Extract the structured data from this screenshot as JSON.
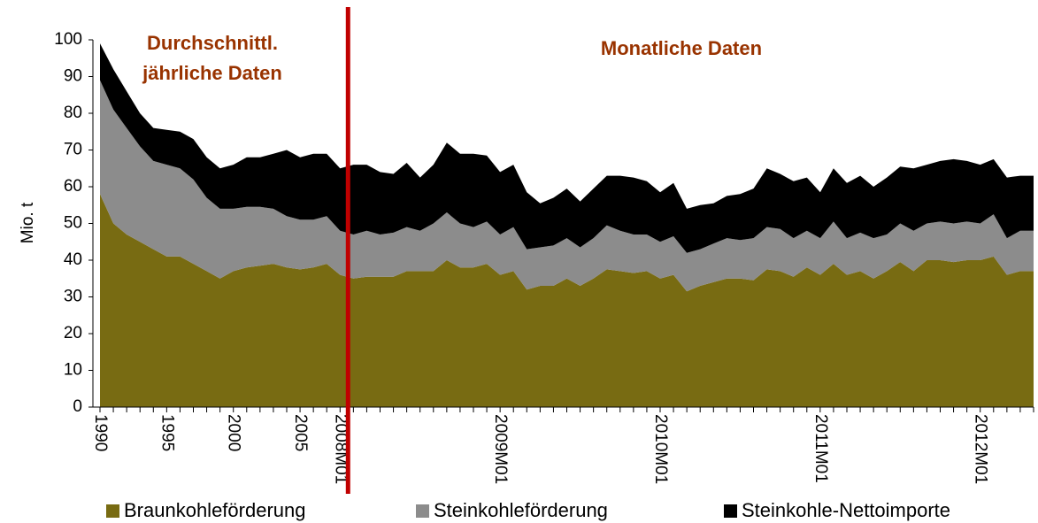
{
  "chart_data": {
    "type": "stacked_area",
    "y_label": "Mio. t",
    "annotations": [
      [
        "Durchschnittl.",
        "jährliche Daten"
      ],
      [
        "Monatliche Daten"
      ]
    ],
    "categories": [
      "1990",
      null,
      null,
      null,
      null,
      "1995",
      null,
      null,
      null,
      null,
      "2000",
      null,
      null,
      null,
      null,
      "2005",
      null,
      null,
      "2008M01",
      null,
      null,
      null,
      null,
      null,
      null,
      null,
      null,
      null,
      null,
      null,
      "2009M01",
      null,
      null,
      null,
      null,
      null,
      null,
      null,
      null,
      null,
      null,
      null,
      "2010M01",
      null,
      null,
      null,
      null,
      null,
      null,
      null,
      null,
      null,
      null,
      null,
      "2011M01",
      null,
      null,
      null,
      null,
      null,
      null,
      null,
      null,
      null,
      null,
      null,
      "2012M01",
      null,
      null,
      null,
      null
    ],
    "series": [
      {
        "name": "Braunkohleförderung",
        "color": "#786b12",
        "values": [
          58,
          50,
          47,
          45,
          43,
          41,
          41,
          39,
          37,
          35,
          37,
          38,
          38.5,
          39,
          38,
          37.5,
          38,
          39,
          36,
          35,
          35.5,
          35.5,
          35.5,
          37,
          37,
          37,
          40,
          38,
          38,
          39,
          36,
          37,
          32,
          33,
          33,
          35,
          33,
          35,
          37.5,
          37,
          36.5,
          37,
          35,
          36,
          31.5,
          33,
          34,
          35,
          35,
          34.5,
          37.5,
          37,
          35.5,
          38,
          36,
          39,
          36,
          37,
          35,
          37,
          39.5,
          37,
          40,
          40,
          39.5,
          40,
          40,
          41,
          36,
          37,
          37
        ]
      },
      {
        "name": "Steinkohleförderung",
        "color": "#8c8c8c",
        "values": [
          31,
          31,
          29,
          26,
          24,
          25,
          24,
          23,
          20,
          19,
          17,
          16.5,
          16,
          15,
          14,
          13.5,
          13,
          13,
          12,
          12,
          12.5,
          11.5,
          12,
          12,
          11,
          13,
          13,
          12,
          11,
          11.5,
          11,
          12,
          11,
          10.5,
          11,
          11,
          10.5,
          11,
          12,
          11,
          10.5,
          10,
          10,
          10.5,
          10.5,
          10,
          10.5,
          11,
          10.5,
          11.5,
          11.5,
          11.5,
          10.5,
          10,
          10,
          11.5,
          10,
          10.5,
          11,
          10,
          10.5,
          11,
          10,
          10.5,
          10.5,
          10.5,
          10,
          11.5,
          10,
          11,
          11
        ]
      },
      {
        "name": "Steinkohle-Nettoimporte",
        "color": "#000000",
        "values": [
          10,
          11,
          10,
          9,
          9,
          9.5,
          10,
          11,
          11,
          11,
          12,
          13.5,
          13.5,
          15,
          18,
          17,
          18,
          17,
          17,
          19,
          18,
          17,
          16,
          17.5,
          14.5,
          16,
          19,
          19,
          20,
          18,
          17,
          17,
          15.5,
          12,
          13,
          13.5,
          12.5,
          13.5,
          13.5,
          15,
          15.5,
          14.5,
          13.5,
          14.5,
          12,
          12,
          11,
          11.5,
          12.5,
          13.5,
          16,
          15,
          15.5,
          14.5,
          12.5,
          14.5,
          15,
          15.5,
          14,
          15.5,
          15.5,
          17,
          16,
          16.5,
          17.5,
          16.5,
          16,
          15,
          16.5,
          15,
          15
        ]
      }
    ],
    "ylim": [
      0,
      100
    ],
    "yticks": [
      0,
      10,
      20,
      30,
      40,
      50,
      60,
      70,
      80,
      90,
      100
    ],
    "divider_color": "#c00000",
    "annotation_color": "#993300",
    "legend": "bottom"
  }
}
